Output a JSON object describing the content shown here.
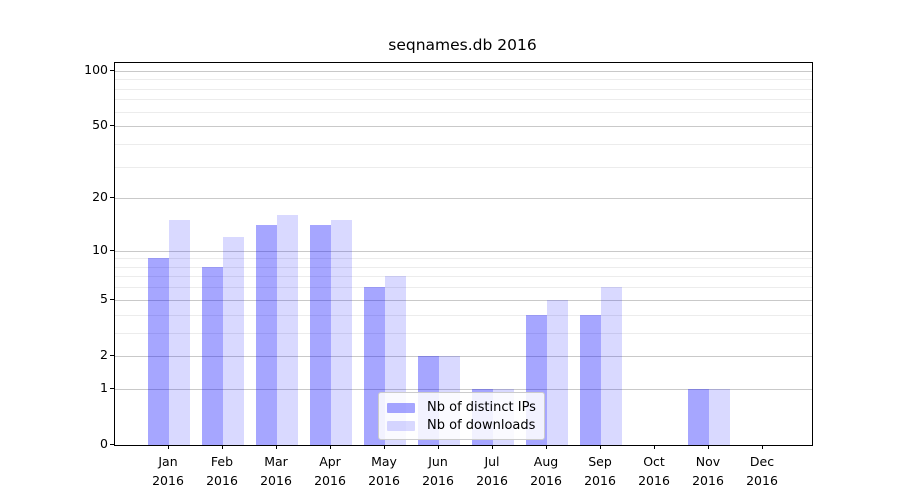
{
  "title": "seqnames.db 2016",
  "legend": {
    "items": [
      {
        "label": "Nb of distinct IPs",
        "color": "rgba(0,0,255,0.35)"
      },
      {
        "label": "Nb of downloads",
        "color": "rgba(0,0,255,0.15)"
      }
    ]
  },
  "chart_data": {
    "type": "bar",
    "title": "seqnames.db 2016",
    "categories": [
      "Jan 2016",
      "Feb 2016",
      "Mar 2016",
      "Apr 2016",
      "May 2016",
      "Jun 2016",
      "Jul 2016",
      "Aug 2016",
      "Sep 2016",
      "Oct 2016",
      "Nov 2016",
      "Dec 2016"
    ],
    "x_tick_lines": [
      {
        "month": "Jan",
        "year": "2016"
      },
      {
        "month": "Feb",
        "year": "2016"
      },
      {
        "month": "Mar",
        "year": "2016"
      },
      {
        "month": "Apr",
        "year": "2016"
      },
      {
        "month": "May",
        "year": "2016"
      },
      {
        "month": "Jun",
        "year": "2016"
      },
      {
        "month": "Jul",
        "year": "2016"
      },
      {
        "month": "Aug",
        "year": "2016"
      },
      {
        "month": "Sep",
        "year": "2016"
      },
      {
        "month": "Oct",
        "year": "2016"
      },
      {
        "month": "Nov",
        "year": "2016"
      },
      {
        "month": "Dec",
        "year": "2016"
      }
    ],
    "series": [
      {
        "name": "Nb of distinct IPs",
        "color": "rgba(0,0,255,0.35)",
        "values": [
          9,
          8,
          14,
          14,
          6,
          2,
          1,
          4,
          4,
          0,
          1,
          0
        ]
      },
      {
        "name": "Nb of downloads",
        "color": "rgba(0,0,255,0.15)",
        "values": [
          15,
          12,
          16,
          15,
          7,
          2,
          1,
          5,
          6,
          0,
          1,
          0
        ]
      }
    ],
    "xlabel": "",
    "ylabel": "",
    "yscale": "log1p",
    "ylim": [
      0,
      110
    ],
    "yticks": [
      0,
      1,
      2,
      5,
      10,
      20,
      50,
      100
    ],
    "minor_yticks": [
      3,
      4,
      6,
      7,
      8,
      9,
      30,
      40,
      60,
      70,
      80,
      90
    ],
    "grid": "horizontal",
    "legend_position": "lower center",
    "colors": {
      "major_grid": "#c9c9c9",
      "minor_grid": "#ececec",
      "axis": "#000000",
      "background": "#ffffff"
    }
  }
}
